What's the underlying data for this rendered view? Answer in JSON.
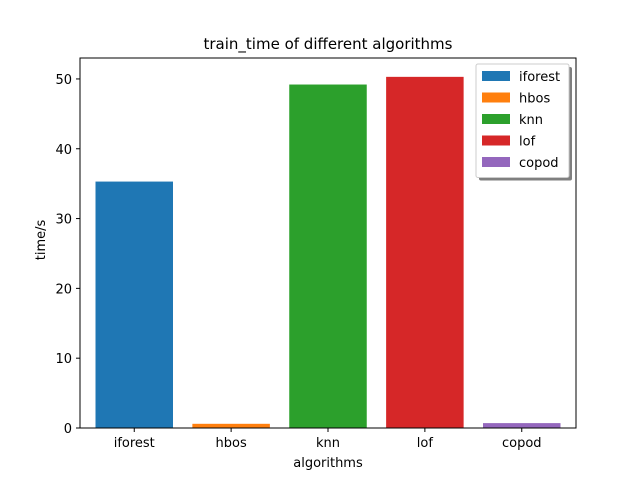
{
  "chart_data": {
    "type": "bar",
    "title": "train_time of different algorithms",
    "xlabel": "algorithms",
    "ylabel": "time/s",
    "categories": [
      "iforest",
      "hbos",
      "knn",
      "lof",
      "copod"
    ],
    "series": [
      {
        "name": "iforest",
        "category": "iforest",
        "value": 35.3,
        "color": "#1f77b4"
      },
      {
        "name": "hbos",
        "category": "hbos",
        "value": 0.6,
        "color": "#ff7f0e"
      },
      {
        "name": "knn",
        "category": "knn",
        "value": 49.2,
        "color": "#2ca02c"
      },
      {
        "name": "lof",
        "category": "lof",
        "value": 50.3,
        "color": "#d62728"
      },
      {
        "name": "copod",
        "category": "copod",
        "value": 0.7,
        "color": "#9467bd"
      }
    ],
    "ylim": [
      0,
      53
    ],
    "yticks": [
      0,
      10,
      20,
      30,
      40,
      50
    ],
    "grid": false,
    "legend_position": "top-right"
  }
}
